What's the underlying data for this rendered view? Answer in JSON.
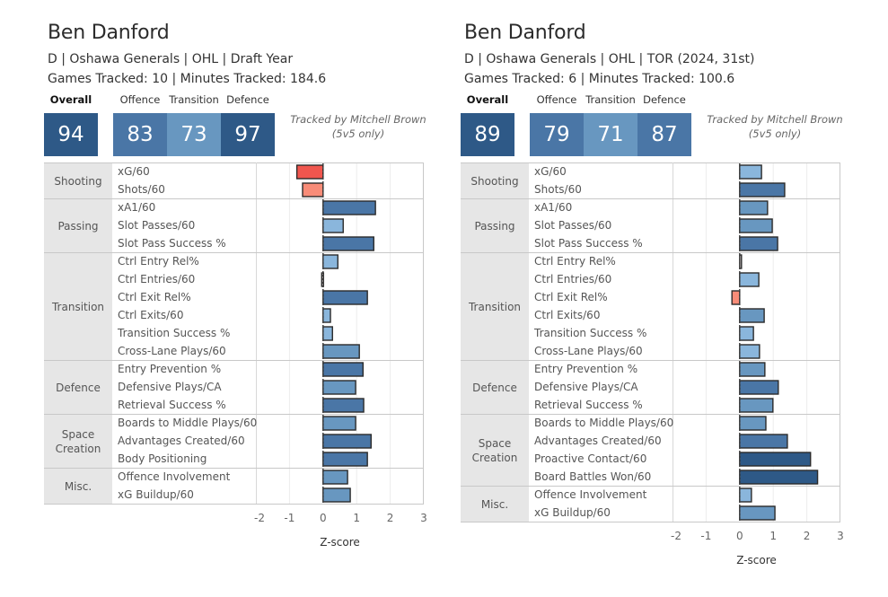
{
  "panels": [
    {
      "player_name": "Ben Danford",
      "subtitle": "D | Oshawa Generals | OHL | Draft Year",
      "tracking_summary": "Games Tracked: 10 | Minutes Tracked: 184.6",
      "scores": {
        "overall_label": "Overall",
        "overall": "94",
        "offence_label": "Offence",
        "offence": "83",
        "transition_label": "Transition",
        "transition": "73",
        "defence_label": "Defence",
        "defence": "97"
      },
      "score_colors": {
        "overall": "#2e5987",
        "offence": "#4a76a6",
        "transition": "#6897c0",
        "defence": "#2e5987"
      },
      "tracked_by": "Tracked by Mitchell Brown",
      "tracked_note": "(5v5 only)"
    },
    {
      "player_name": "Ben Danford",
      "subtitle": "D | Oshawa Generals | OHL | TOR (2024, 31st)",
      "tracking_summary": "Games Tracked: 6 | Minutes Tracked: 100.6",
      "scores": {
        "overall_label": "Overall",
        "overall": "89",
        "offence_label": "Offence",
        "offence": "79",
        "transition_label": "Transition",
        "transition": "71",
        "defence_label": "Defence",
        "defence": "87"
      },
      "score_colors": {
        "overall": "#2e5987",
        "offence": "#4a76a6",
        "transition": "#6897c0",
        "defence": "#4a76a6"
      },
      "tracked_by": "Tracked by Mitchell Brown",
      "tracked_note": "(5v5 only)"
    }
  ],
  "chart_data": [
    {
      "type": "bar",
      "orientation": "horizontal",
      "title": "Ben Danford — Draft Year",
      "xlabel": "Z-score",
      "ylabel": "",
      "xlim": [
        -2,
        3
      ],
      "xticks": [
        "-2",
        "-1",
        "0",
        "1",
        "2",
        "3"
      ],
      "grid": true,
      "groups": [
        {
          "name": "Shooting",
          "metrics": [
            {
              "label": "xG/60",
              "value": -0.78
            },
            {
              "label": "Shots/60",
              "value": -0.61
            }
          ]
        },
        {
          "name": "Passing",
          "metrics": [
            {
              "label": "xA1/60",
              "value": 1.56
            },
            {
              "label": "Slot Passes/60",
              "value": 0.6
            },
            {
              "label": "Slot Pass Success %",
              "value": 1.51
            }
          ]
        },
        {
          "name": "Transition",
          "metrics": [
            {
              "label": "Ctrl Entry Rel%",
              "value": 0.44
            },
            {
              "label": "Ctrl Entries/60",
              "value": -0.04
            },
            {
              "label": "Ctrl Exit Rel%",
              "value": 1.32
            },
            {
              "label": "Ctrl Exits/60",
              "value": 0.22
            },
            {
              "label": "Transition Success %",
              "value": 0.28
            },
            {
              "label": "Cross-Lane Plays/60",
              "value": 1.08
            }
          ]
        },
        {
          "name": "Defence",
          "metrics": [
            {
              "label": "Entry Prevention %",
              "value": 1.19
            },
            {
              "label": "Defensive Plays/CA",
              "value": 0.97
            },
            {
              "label": "Retrieval Success %",
              "value": 1.21
            }
          ]
        },
        {
          "name": "Space Creation",
          "metrics": [
            {
              "label": "Boards to Middle Plays/60",
              "value": 0.97
            },
            {
              "label": "Advantages Created/60",
              "value": 1.43
            },
            {
              "label": "Body Positioning",
              "value": 1.32
            }
          ]
        },
        {
          "name": "Misc.",
          "metrics": [
            {
              "label": "Offence Involvement",
              "value": 0.73
            },
            {
              "label": "xG Buildup/60",
              "value": 0.81
            }
          ]
        }
      ]
    },
    {
      "type": "bar",
      "orientation": "horizontal",
      "title": "Ben Danford — TOR (2024, 31st)",
      "xlabel": "Z-score",
      "ylabel": "",
      "xlim": [
        -2,
        3
      ],
      "xticks": [
        "-2",
        "-1",
        "0",
        "1",
        "2",
        "3"
      ],
      "grid": true,
      "groups": [
        {
          "name": "Shooting",
          "metrics": [
            {
              "label": "xG/60",
              "value": 0.65
            },
            {
              "label": "Shots/60",
              "value": 1.34
            }
          ]
        },
        {
          "name": "Passing",
          "metrics": [
            {
              "label": "xA1/60",
              "value": 0.83
            },
            {
              "label": "Slot Passes/60",
              "value": 0.97
            },
            {
              "label": "Slot Pass Success %",
              "value": 1.13
            }
          ]
        },
        {
          "name": "Transition",
          "metrics": [
            {
              "label": "Ctrl Entry Rel%",
              "value": 0.03
            },
            {
              "label": "Ctrl Entries/60",
              "value": 0.57
            },
            {
              "label": "Ctrl Exit Rel%",
              "value": -0.23
            },
            {
              "label": "Ctrl Exits/60",
              "value": 0.73
            },
            {
              "label": "Transition Success %",
              "value": 0.41
            },
            {
              "label": "Cross-Lane Plays/60",
              "value": 0.59
            }
          ]
        },
        {
          "name": "Defence",
          "metrics": [
            {
              "label": "Entry Prevention %",
              "value": 0.75
            },
            {
              "label": "Defensive Plays/CA",
              "value": 1.15
            },
            {
              "label": "Retrieval Success %",
              "value": 0.99
            }
          ]
        },
        {
          "name": "Space Creation",
          "metrics": [
            {
              "label": "Boards to Middle Plays/60",
              "value": 0.78
            },
            {
              "label": "Advantages Created/60",
              "value": 1.42
            },
            {
              "label": "Proactive Contact/60",
              "value": 2.11
            },
            {
              "label": "Board Battles Won/60",
              "value": 2.32
            }
          ]
        },
        {
          "name": "Misc.",
          "metrics": [
            {
              "label": "Offence Involvement",
              "value": 0.35
            },
            {
              "label": "xG Buildup/60",
              "value": 1.05
            }
          ]
        }
      ]
    }
  ],
  "color_scale": {
    "strong_negative": "#f0564e",
    "negative": "#f88c78",
    "neutral": "#e2d8d8",
    "low_positive": "#8ab6dc",
    "mid_positive": "#6897c0",
    "high_positive": "#4a76a6",
    "top_positive": "#2e5987"
  }
}
